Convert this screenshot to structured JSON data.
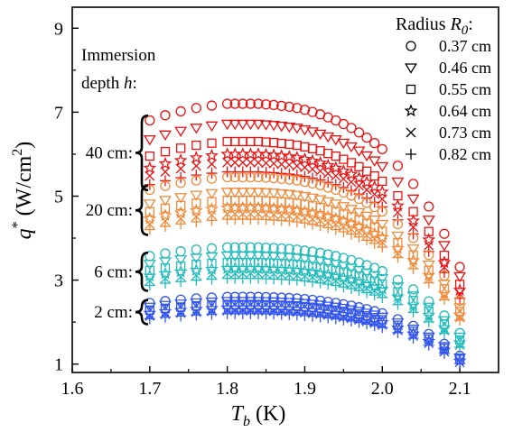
{
  "chart_data": {
    "type": "scatter",
    "xlabel_main": "T",
    "xlabel_sub": "b",
    "xlabel_unit": "(K)",
    "ylabel_main": "q",
    "ylabel_sup": "*",
    "ylabel_unit": "(W/cm",
    "ylabel_unit_sup": "2",
    "ylabel_unit_close": ")",
    "xlim": [
      1.6,
      2.15
    ],
    "ylim": [
      0.8,
      9.5
    ],
    "xticks": [
      1.6,
      1.7,
      1.8,
      1.9,
      2.0,
      2.1
    ],
    "xtick_labels": [
      "1.6",
      "1.7",
      "1.8",
      "1.9",
      "2.0",
      "2.1"
    ],
    "yticks": [
      1,
      3,
      5,
      7,
      9
    ],
    "ytick_labels": [
      "1",
      "3",
      "5",
      "7",
      "9"
    ],
    "legend": {
      "position": "top-right",
      "title_prefix": "Radius ",
      "title_var": "R",
      "title_sub": "0",
      "title_suffix": ":",
      "entries": [
        {
          "marker": "circle",
          "label": "0.37 cm"
        },
        {
          "marker": "triangle-down",
          "label": "0.46 cm"
        },
        {
          "marker": "square",
          "label": "0.55 cm"
        },
        {
          "marker": "star",
          "label": "0.64 cm"
        },
        {
          "marker": "x",
          "label": "0.73 cm"
        },
        {
          "marker": "plus",
          "label": "0.82 cm"
        }
      ]
    },
    "annotation_title": {
      "line1": "Immersion",
      "line2": "depth ",
      "var": "h",
      "colon": ":"
    },
    "groups": [
      {
        "label": "40 cm:",
        "color": "#ee1111",
        "peaks": [
          7.2,
          6.72,
          6.3,
          6.0,
          5.8,
          5.58
        ]
      },
      {
        "label": "20 cm:",
        "color": "#f08a3a",
        "peaks": [
          5.45,
          5.1,
          4.9,
          4.72,
          4.58,
          4.45
        ]
      },
      {
        "label": "6 cm:",
        "color": "#22bbbb",
        "peaks": [
          3.78,
          3.58,
          3.42,
          3.28,
          3.16,
          3.04
        ]
      },
      {
        "label": "2 cm:",
        "color": "#3355ee",
        "peaks": [
          2.6,
          2.5,
          2.42,
          2.34,
          2.27,
          2.2
        ]
      }
    ],
    "temperatures": [
      1.7,
      1.72,
      1.74,
      1.76,
      1.78,
      1.8,
      1.81,
      1.82,
      1.83,
      1.84,
      1.85,
      1.86,
      1.87,
      1.88,
      1.89,
      1.9,
      1.91,
      1.92,
      1.93,
      1.94,
      1.95,
      1.96,
      1.97,
      1.98,
      1.99,
      2.0,
      2.02,
      2.04,
      2.06,
      2.08,
      2.1
    ],
    "shape_factors": [
      0.945,
      0.962,
      0.975,
      0.986,
      0.994,
      1.0,
      1.0,
      1.0,
      1.0,
      1.0,
      0.998,
      0.996,
      0.993,
      0.99,
      0.986,
      0.98,
      0.973,
      0.965,
      0.955,
      0.945,
      0.933,
      0.92,
      0.905,
      0.888,
      0.87,
      0.85,
      0.795,
      0.735,
      0.66,
      0.57,
      0.46
    ]
  }
}
